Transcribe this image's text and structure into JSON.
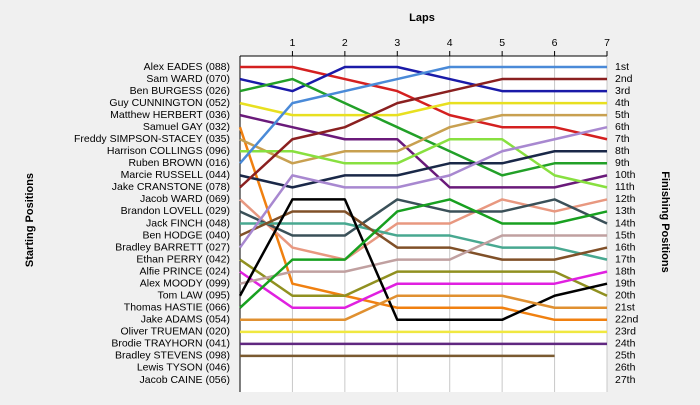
{
  "chart_data": {
    "type": "line",
    "title": "Laps",
    "y_label": "Starting Positions",
    "y2_label": "Finishing Positions",
    "x": [
      0,
      1,
      2,
      3,
      4,
      5,
      6,
      7
    ],
    "xlim": [
      0,
      7
    ],
    "xticks": [
      1,
      2,
      3,
      4,
      5,
      6,
      7
    ],
    "ylim": [
      1,
      27
    ],
    "grid": true,
    "finishing_positions": [
      "1st",
      "2nd",
      "3rd",
      "4th",
      "5th",
      "6th",
      "7th",
      "8th",
      "9th",
      "10th",
      "11th",
      "12th",
      "13th",
      "14th",
      "15th",
      "16th",
      "17th",
      "18th",
      "19th",
      "20th",
      "21st",
      "22nd",
      "23rd",
      "24th",
      "25th",
      "26th",
      "27th"
    ],
    "series": [
      {
        "name": "Alex EADES (088)",
        "color": "#d42020",
        "values": [
          1,
          1,
          2,
          3,
          5,
          6,
          6,
          7
        ]
      },
      {
        "name": "Sam WARD (070)",
        "color": "#1a1aa8",
        "values": [
          2,
          3,
          1,
          1,
          2,
          3,
          3,
          3
        ]
      },
      {
        "name": "Ben BURGESS (026)",
        "color": "#22a028",
        "values": [
          3,
          2,
          4,
          6,
          8,
          10,
          9,
          9
        ]
      },
      {
        "name": "Guy CUNNINGTON (052)",
        "color": "#e8e020",
        "values": [
          4,
          5,
          5,
          5,
          4,
          4,
          4,
          4
        ]
      },
      {
        "name": "Matthew HERBERT (036)",
        "color": "#6a1a7a",
        "values": [
          5,
          6,
          7,
          7,
          11,
          11,
          11,
          10
        ]
      },
      {
        "name": "Samuel GAY (032)",
        "color": "#f08010",
        "values": [
          6,
          19,
          20,
          21,
          21,
          21,
          22,
          22
        ]
      },
      {
        "name": "Freddy SIMPSON-STACEY (035)",
        "color": "#c8a050",
        "values": [
          7,
          9,
          8,
          8,
          6,
          5,
          5,
          5
        ]
      },
      {
        "name": "Harrison COLLINGS (096)",
        "color": "#88e040",
        "values": [
          8,
          8,
          9,
          9,
          7,
          7,
          10,
          11
        ]
      },
      {
        "name": "Ruben BROWN (016)",
        "color": "#4a8ad8",
        "values": [
          9,
          4,
          3,
          2,
          1,
          1,
          1,
          1
        ]
      },
      {
        "name": "Marcie RUSSELL (044)",
        "color": "#1a2848",
        "values": [
          10,
          11,
          10,
          10,
          9,
          9,
          8,
          8
        ]
      },
      {
        "name": "Jake CRANSTONE (078)",
        "color": "#8a2020",
        "values": [
          11,
          7,
          6,
          4,
          3,
          2,
          2,
          2
        ]
      },
      {
        "name": "Jacob WARD (069)",
        "color": "#e89880",
        "values": [
          12,
          16,
          17,
          14,
          14,
          12,
          13,
          12
        ]
      },
      {
        "name": "Brandon LOVELL (029)",
        "color": "#3a5058",
        "values": [
          13,
          15,
          15,
          12,
          13,
          13,
          12,
          14
        ]
      },
      {
        "name": "Jack FINCH (048)",
        "color": "#48a890",
        "values": [
          14,
          14,
          14,
          15,
          15,
          16,
          16,
          17
        ]
      },
      {
        "name": "Ben HODGE (040)",
        "color": "#805028",
        "values": [
          15,
          13,
          13,
          16,
          16,
          17,
          17,
          16
        ]
      },
      {
        "name": "Bradley BARRETT (027)",
        "color": "#a888d0",
        "values": [
          16,
          10,
          11,
          11,
          10,
          8,
          7,
          6
        ]
      },
      {
        "name": "Ethan PERRY (042)",
        "color": "#909020",
        "values": [
          17,
          20,
          20,
          18,
          18,
          18,
          18,
          20
        ]
      },
      {
        "name": "Alfie PRINCE (024)",
        "color": "#e020e0",
        "values": [
          18,
          21,
          21,
          19,
          19,
          19,
          19,
          18
        ]
      },
      {
        "name": "Alex MOODY (099)",
        "color": "#c0a0a0",
        "values": [
          19,
          18,
          18,
          17,
          17,
          15,
          15,
          15
        ]
      },
      {
        "name": "Tom LAW (095)",
        "color": "#000000",
        "values": [
          20,
          12,
          12,
          22,
          22,
          22,
          20,
          19
        ]
      },
      {
        "name": "Thomas HASTIE (066)",
        "color": "#18a020",
        "values": [
          21,
          17,
          17,
          13,
          12,
          14,
          14,
          13
        ]
      },
      {
        "name": "Jake ADAMS (054)",
        "color": "#e09030",
        "values": [
          22,
          22,
          22,
          20,
          20,
          20,
          21,
          21
        ]
      },
      {
        "name": "Oliver TRUEMAN (020)",
        "color": "#f0e840",
        "values": [
          23,
          23,
          23,
          23,
          23,
          23,
          23,
          23
        ]
      },
      {
        "name": "Brodie TRAYHORN (041)",
        "color": "#602880",
        "values": [
          24,
          24,
          24,
          24,
          24,
          24,
          24,
          24
        ]
      },
      {
        "name": "Bradley STEVENS (098)",
        "color": "#7a5a30",
        "values": [
          25,
          25,
          25,
          25,
          25,
          25,
          25,
          null
        ]
      },
      {
        "name": "Lewis TYSON (046)",
        "color": "#808080",
        "values": [
          null,
          null,
          null,
          null,
          null,
          null,
          null,
          null
        ]
      },
      {
        "name": "Jacob CAINE (056)",
        "color": "#808080",
        "values": [
          null,
          null,
          null,
          null,
          null,
          null,
          null,
          null
        ]
      }
    ]
  }
}
